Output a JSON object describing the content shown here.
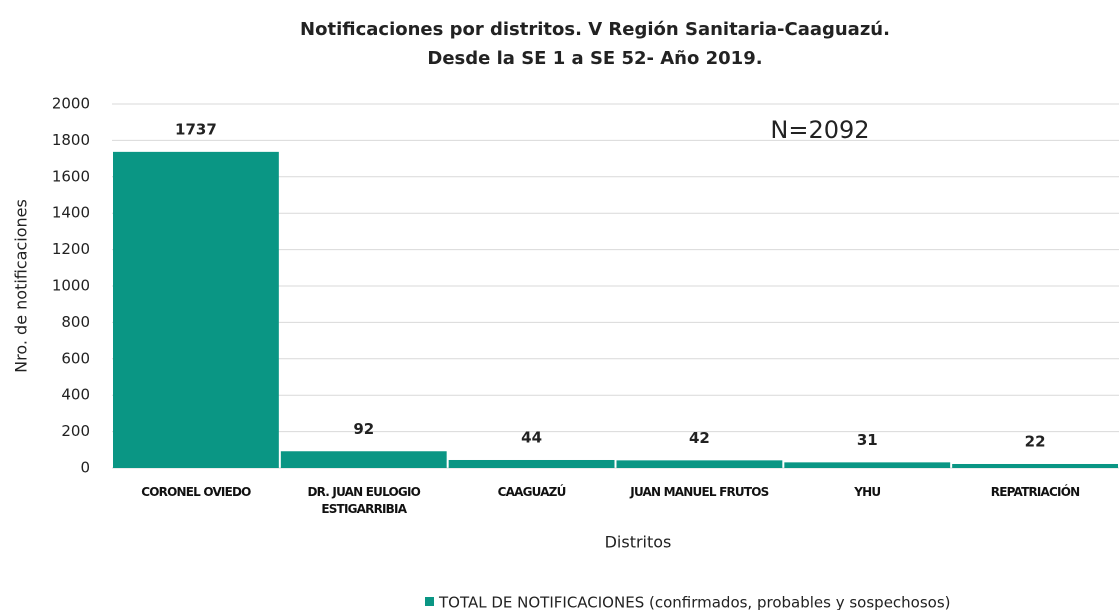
{
  "chart_data": {
    "type": "bar",
    "title": [
      "Notificaciones por distritos. V Región Sanitaria-Caaguazú.",
      "Desde la SE 1 a SE 52- Año 2019."
    ],
    "annotation": "N=2092",
    "x_label": "Distritos",
    "y_label": "Nro. de notificaciones",
    "categories": [
      "CORONEL OVIEDO",
      "DR. JUAN EULOGIO ESTIGARRIBIA",
      "CAAGUAZÚ",
      "JUAN MANUEL FRUTOS",
      "YHU",
      "REPATRIACIÓN"
    ],
    "series": [
      {
        "name": "TOTAL DE NOTIFICACIONES (confirmados, probables y sospechosos)",
        "color": "#0a9684",
        "values": [
          1737,
          92,
          44,
          42,
          31,
          22
        ]
      }
    ],
    "ylim": [
      0,
      2000
    ],
    "yticks": [
      0,
      200,
      400,
      600,
      800,
      1000,
      1200,
      1400,
      1600,
      1800,
      2000
    ],
    "grid": true
  }
}
